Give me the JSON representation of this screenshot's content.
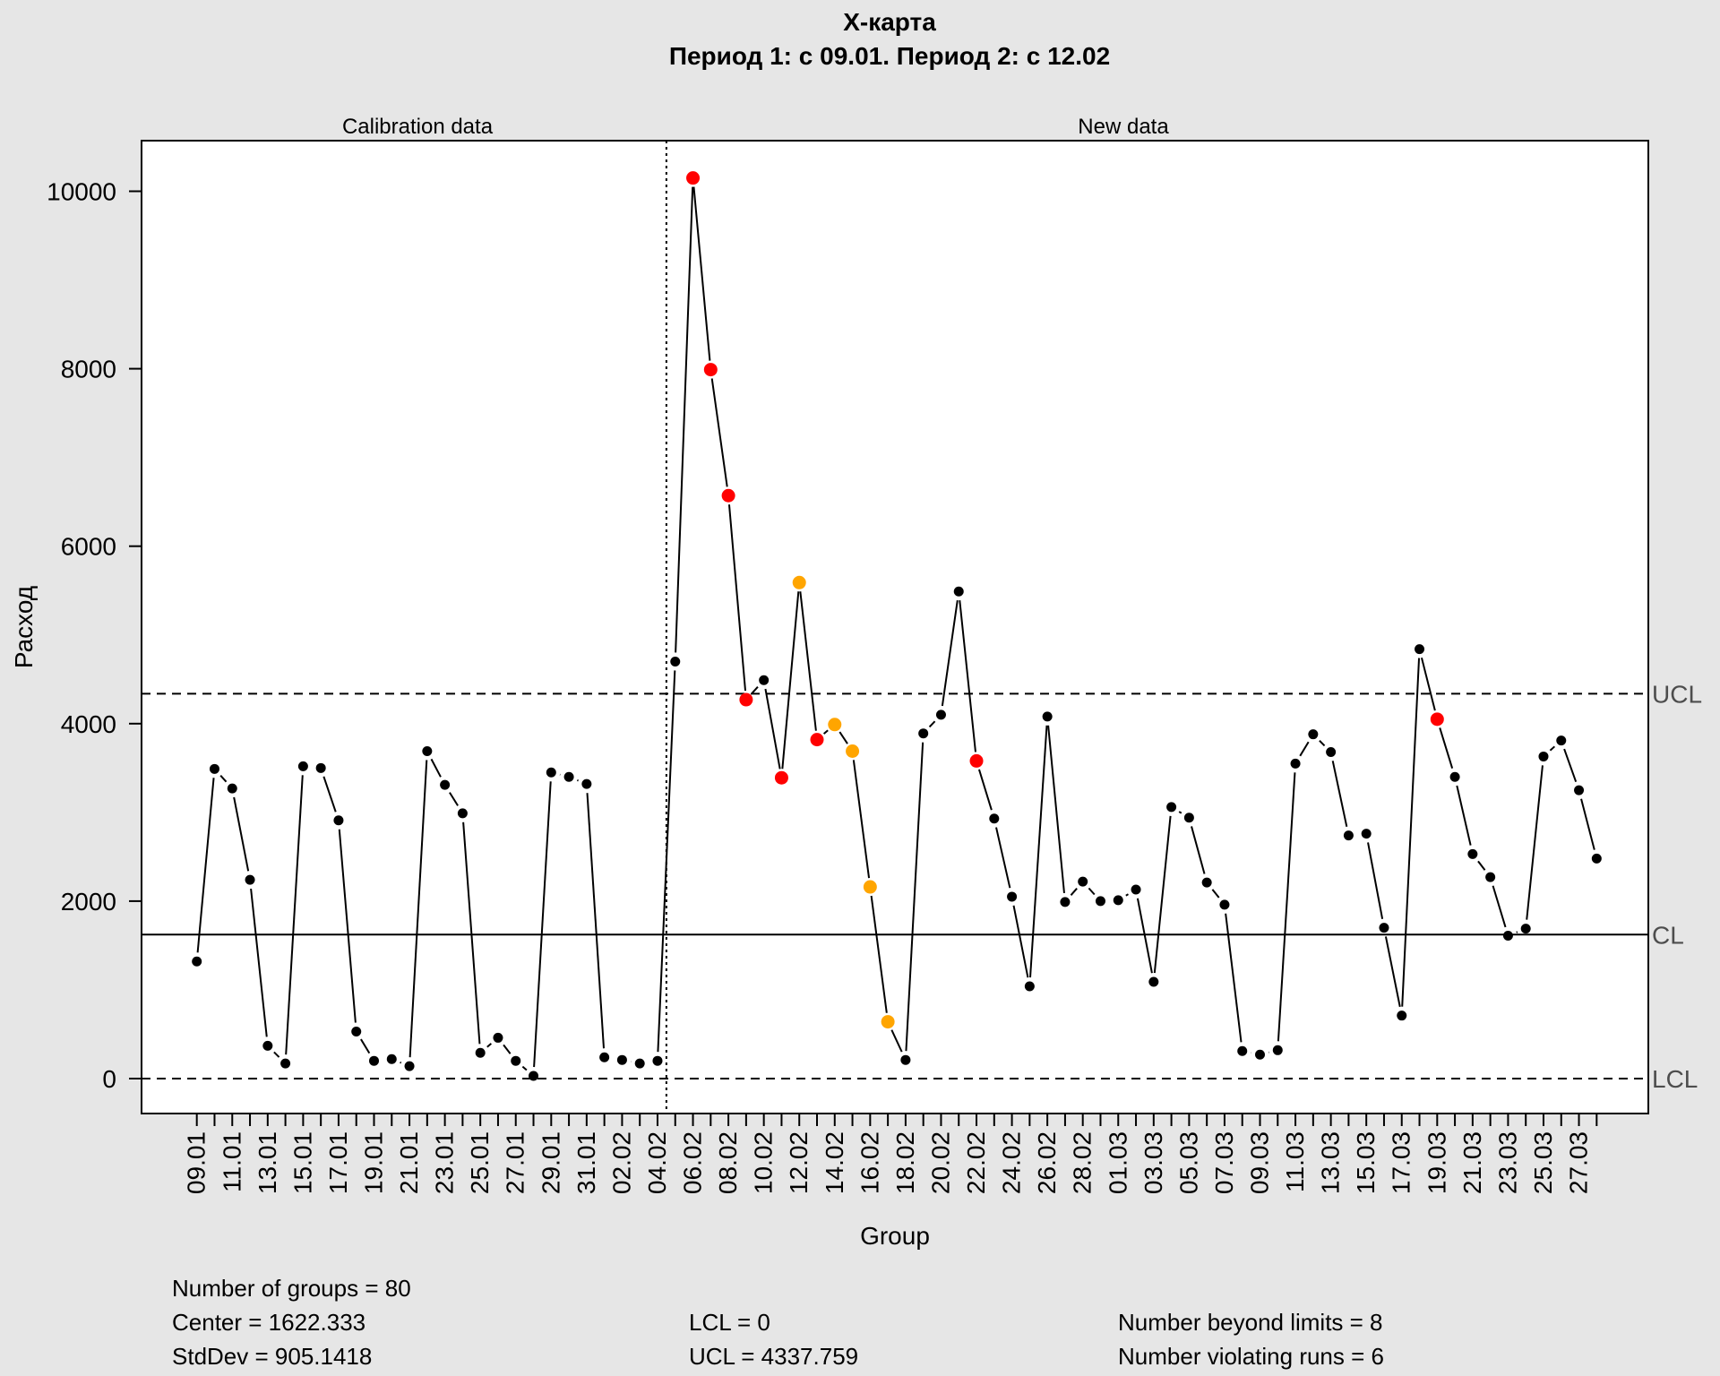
{
  "chart_data": {
    "type": "line",
    "title": "X-карта",
    "subtitle": "Период 1: с 09.01. Период 2: с 12.02",
    "xlabel": "Group",
    "ylabel": "Расход",
    "ylim": [
      -400,
      10400
    ],
    "yticks": [
      0,
      2000,
      4000,
      6000,
      8000,
      10000
    ],
    "grid": false,
    "legend": "none",
    "regions": [
      "Calibration data",
      "New data"
    ],
    "calibration_count": 27,
    "limit_labels": {
      "ucl": "UCL",
      "cl": "CL",
      "lcl": "LCL"
    },
    "center": 1622.333,
    "ucl": 4337.759,
    "lcl": 0,
    "x_tick_labels": [
      "09.01",
      "11.01",
      "13.01",
      "15.01",
      "17.01",
      "19.01",
      "21.01",
      "23.01",
      "25.01",
      "27.01",
      "29.01",
      "31.01",
      "02.02",
      "04.02",
      "06.02",
      "08.02",
      "10.02",
      "12.02",
      "14.02",
      "16.02",
      "18.02",
      "20.02",
      "22.02",
      "24.02",
      "26.02",
      "28.02",
      "01.03",
      "03.03",
      "05.03",
      "07.03",
      "09.03",
      "11.03",
      "13.03",
      "15.03",
      "17.03",
      "19.03",
      "21.03",
      "23.03",
      "25.03",
      "27.03"
    ],
    "values": [
      1320,
      3490,
      3270,
      2240,
      370,
      170,
      3520,
      3500,
      2910,
      530,
      200,
      220,
      140,
      3690,
      3310,
      2990,
      290,
      460,
      200,
      30,
      3450,
      3400,
      3320,
      240,
      210,
      170,
      200,
      4700,
      10150,
      7990,
      6570,
      4270,
      4490,
      3390,
      5590,
      3820,
      3990,
      3690,
      2160,
      640,
      210,
      3890,
      4100,
      5490,
      3580,
      2930,
      2050,
      1040,
      4080,
      1990,
      2220,
      2000,
      2010,
      2130,
      1090,
      3060,
      2940,
      2210,
      1960,
      310,
      270,
      320,
      3550,
      3880,
      3680,
      2740,
      2760,
      1700,
      710,
      4840,
      4050,
      3400,
      2530,
      2270,
      1610,
      1690,
      3630,
      3810,
      3250,
      2480
    ],
    "point_status": {
      "beyond_limits": [
        28,
        29,
        30,
        31,
        33,
        35,
        44,
        70
      ],
      "violating_runs": [
        34,
        36,
        37,
        38,
        39
      ]
    },
    "colors": {
      "normal": "#000000",
      "beyond": "#ff0000",
      "violating": "#ffa500",
      "limit_label": "#4d4d4d"
    },
    "stats": {
      "groups": "Number of groups = 80",
      "center": "Center = 1622.333",
      "stddev": "StdDev = 905.1418",
      "lcl": "LCL = 0",
      "ucl": "UCL = 4337.759",
      "beyond": "Number beyond limits = 8",
      "runs": "Number violating runs = 6"
    }
  }
}
